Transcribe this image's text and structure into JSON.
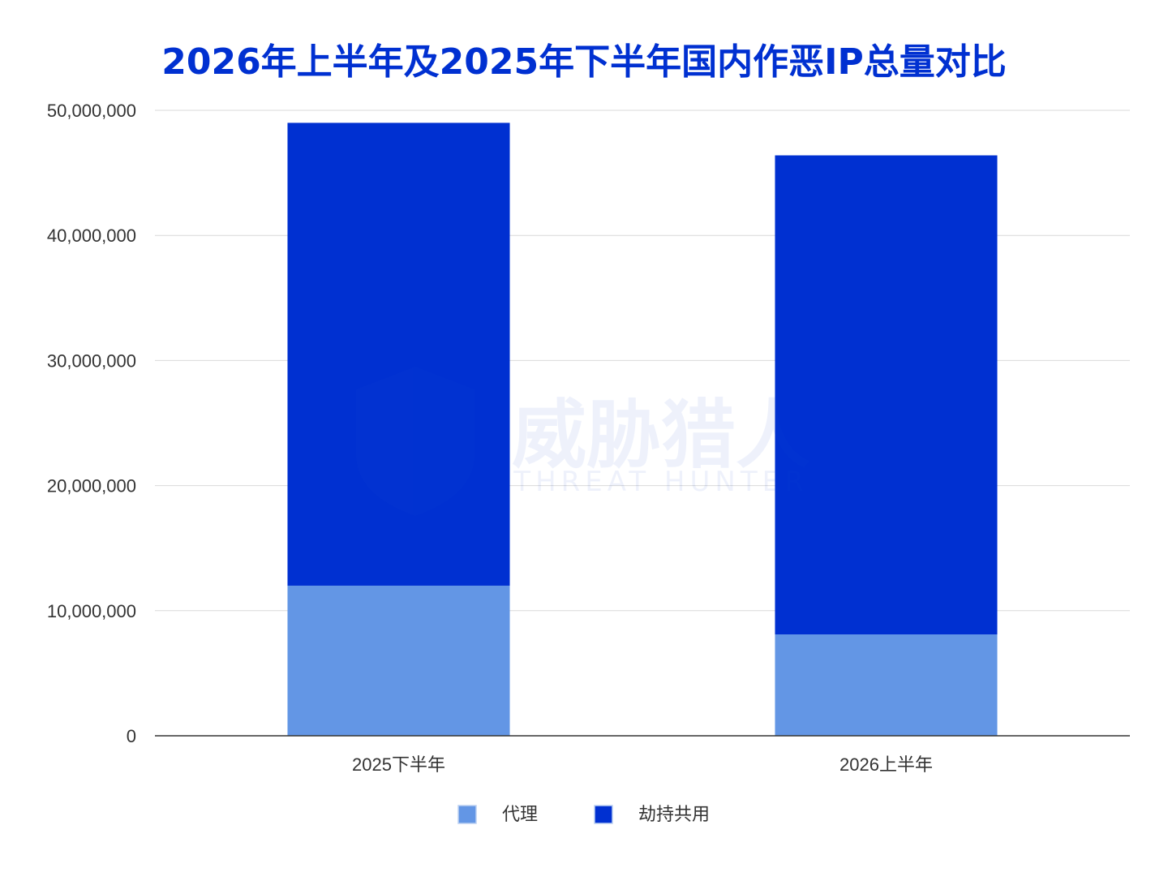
{
  "chart_data": {
    "type": "bar",
    "stacked": true,
    "title": "2026年上半年及2025年下半年国内作恶IP总量对比",
    "xlabel": "",
    "ylabel": "",
    "categories": [
      "2025下半年",
      "2026上半年"
    ],
    "series": [
      {
        "name": "代理",
        "values": [
          12000000,
          8100000
        ],
        "color": "#6396e5"
      },
      {
        "name": "劫持共用",
        "values": [
          37000000,
          38300000
        ],
        "color": "#0030d1"
      }
    ],
    "ylim": [
      0,
      50000000
    ],
    "yticks": [
      0,
      10000000,
      20000000,
      30000000,
      40000000,
      50000000
    ],
    "ytick_labels": [
      "0",
      "10,000,000",
      "20,000,000",
      "30,000,000",
      "40,000,000",
      "50,000,000"
    ],
    "grid": true,
    "legend_position": "bottom",
    "title_color": "#0030d1",
    "watermark": {
      "brand": "威胁猎人",
      "brand_en": "THREAT HUNTER"
    }
  }
}
